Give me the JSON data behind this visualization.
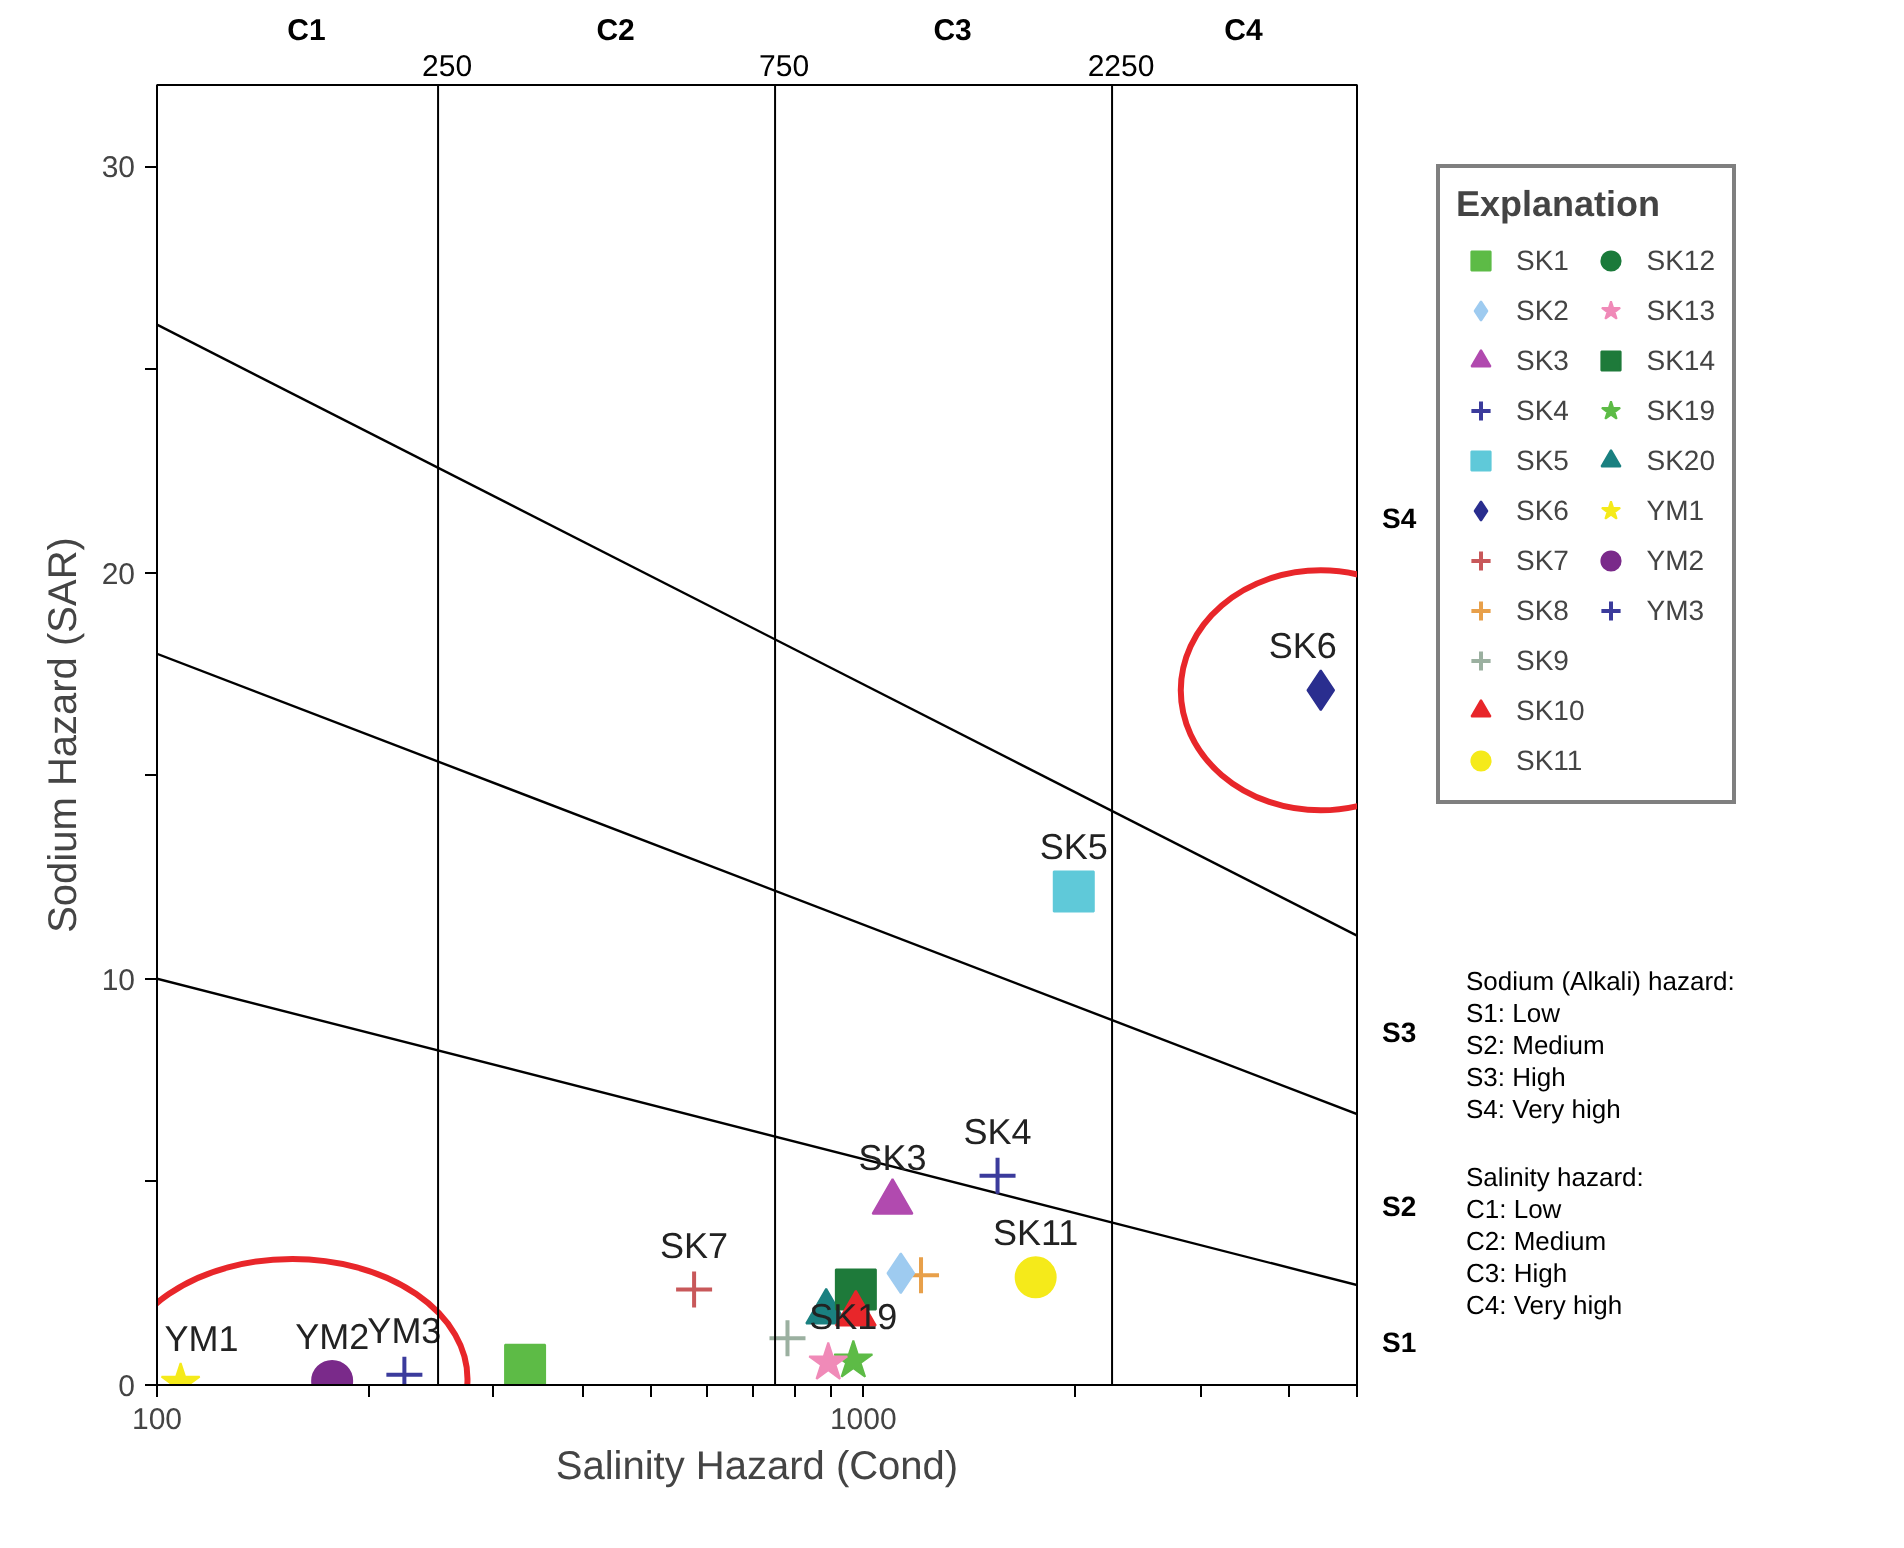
{
  "chart_data": {
    "type": "scatter",
    "xlabel": "Salinity Hazard (Cond)",
    "ylabel": "Sodium Hazard (SAR)",
    "log": "x",
    "xlim": [
      100,
      5000
    ],
    "ylim": [
      0,
      32
    ],
    "xticks": [
      100,
      {
        "value": 200,
        "label": null
      },
      {
        "value": 300,
        "label": null
      },
      {
        "value": 400,
        "label": null
      },
      {
        "value": 500,
        "label": null
      },
      {
        "value": 600,
        "label": null
      },
      {
        "value": 700,
        "label": null
      },
      {
        "value": 800,
        "label": null
      },
      {
        "value": 900,
        "label": null
      },
      1000,
      {
        "value": 2000,
        "label": null
      },
      {
        "value": 3000,
        "label": null
      },
      {
        "value": 4000,
        "label": null
      },
      {
        "value": 5000,
        "label": null
      }
    ],
    "yticks": [
      0,
      {
        "value": 5,
        "label": null
      },
      10,
      {
        "value": 15,
        "label": null
      },
      20,
      {
        "value": 25,
        "label": null
      },
      30
    ],
    "grid": false,
    "legend": "right",
    "legend_title": "Explanation",
    "ref_lines": [
      {
        "axis": "x",
        "value": 250,
        "label": "250",
        "color": "#000000"
      },
      {
        "axis": "x",
        "value": 750,
        "label": "750",
        "color": "#000000"
      },
      {
        "axis": "x",
        "value": 2250,
        "label": "2250",
        "color": "#000000"
      }
    ],
    "series": [
      {
        "name": "SK1",
        "color": "#5dbb46",
        "marker": "square",
        "x": [
          332
        ],
        "values": [
          0.5
        ]
      },
      {
        "name": "SK2",
        "color": "#9ecbf0",
        "marker": "diamond",
        "x": [
          1130
        ],
        "values": [
          2.75
        ]
      },
      {
        "name": "SK3",
        "color": "#b14aaf",
        "marker": "triangle",
        "x": [
          1100
        ],
        "values": [
          4.5
        ]
      },
      {
        "name": "SK4",
        "color": "#3b3b9c",
        "marker": "cross",
        "x": [
          1549
        ],
        "values": [
          5.15
        ]
      },
      {
        "name": "SK5",
        "color": "#5fc9d9",
        "marker": "square",
        "x": [
          1986
        ],
        "values": [
          12.15
        ]
      },
      {
        "name": "SK6",
        "color": "#2a2e8f",
        "marker": "diamond",
        "x": [
          4443
        ],
        "values": [
          17.1
        ]
      },
      {
        "name": "SK7",
        "color": "#c8585a",
        "marker": "cross",
        "x": [
          576
        ],
        "values": [
          2.35
        ]
      },
      {
        "name": "SK8",
        "color": "#e8a04a",
        "marker": "cross",
        "x": [
          1207
        ],
        "values": [
          2.7
        ]
      },
      {
        "name": "SK9",
        "color": "#9bb0a0",
        "marker": "cross",
        "x": [
          781
        ],
        "values": [
          1.15
        ]
      },
      {
        "name": "SK10",
        "color": "#e8262a",
        "marker": "triangle",
        "x": [
          976
        ],
        "values": [
          1.75
        ]
      },
      {
        "name": "SK11",
        "color": "#f5ea1a",
        "marker": "circle",
        "x": [
          1754
        ],
        "values": [
          2.65
        ]
      },
      {
        "name": "SK12",
        "color": "#1a7a3a",
        "marker": "circle",
        "x": [
          null
        ],
        "values": [
          null
        ]
      },
      {
        "name": "SK13",
        "color": "#f08ab8",
        "marker": "star",
        "x": [
          892
        ],
        "values": [
          0.55
        ]
      },
      {
        "name": "SK14",
        "color": "#1e7a3a",
        "marker": "square",
        "x": [
          976
        ],
        "values": [
          2.35
        ]
      },
      {
        "name": "SK19",
        "color": "#5dbb46",
        "marker": "star",
        "x": [
          968
        ],
        "values": [
          0.6
        ]
      },
      {
        "name": "SK20",
        "color": "#1a8080",
        "marker": "triangle",
        "x": [
          886
        ],
        "values": [
          1.8
        ]
      },
      {
        "name": "YM1",
        "color": "#f5ea1a",
        "marker": "star",
        "x": [
          108
        ],
        "values": [
          0.05
        ]
      },
      {
        "name": "YM2",
        "color": "#7a2a8a",
        "marker": "circle",
        "x": [
          177
        ],
        "values": [
          0.1
        ]
      },
      {
        "name": "YM3",
        "color": "#3b3b9c",
        "marker": "cross",
        "x": [
          224
        ],
        "values": [
          0.25
        ]
      },
      {
        "type": "line",
        "color": "#000000",
        "x": [
          100,
          5000
        ],
        "values": [
          26.1,
          11.06
        ]
      },
      {
        "type": "line",
        "color": "#000000",
        "x": [
          100,
          5000
        ],
        "values": [
          18.0,
          6.67
        ]
      },
      {
        "type": "line",
        "color": "#000000",
        "x": [
          100,
          5000
        ],
        "values": [
          10.0,
          2.46
        ]
      }
    ],
    "annotations": [
      {
        "text": "YM1",
        "x": 108,
        "y": 0.05
      },
      {
        "text": "YM2",
        "x": 177,
        "y": 0.1
      },
      {
        "text": "YM3",
        "x": 224,
        "y": 0.25
      },
      {
        "text": "SK7",
        "x": 576,
        "y": 2.35
      },
      {
        "text": "SK3",
        "x": 1100,
        "y": 4.5
      },
      {
        "text": "SK4",
        "x": 1549,
        "y": 5.15
      },
      {
        "text": "SK19",
        "x": 968,
        "y": 0.6
      },
      {
        "text": "SK11",
        "x": 1754,
        "y": 2.65
      },
      {
        "text": "SK5",
        "x": 1986,
        "y": 12.15
      },
      {
        "text": "SK6",
        "x": 4443,
        "y": 17.1
      },
      "C1",
      "C2",
      "C3",
      "C4",
      "S1",
      "S2",
      "S3",
      "S4",
      "Sodium (Alkali) hazard:\nS1: Low\nS2: Medium\nS3: High\nS4: Very high",
      "Salinity hazard:\nC1: Low\nC2: Medium\nC3: High\nC4: Very high"
    ]
  }
}
